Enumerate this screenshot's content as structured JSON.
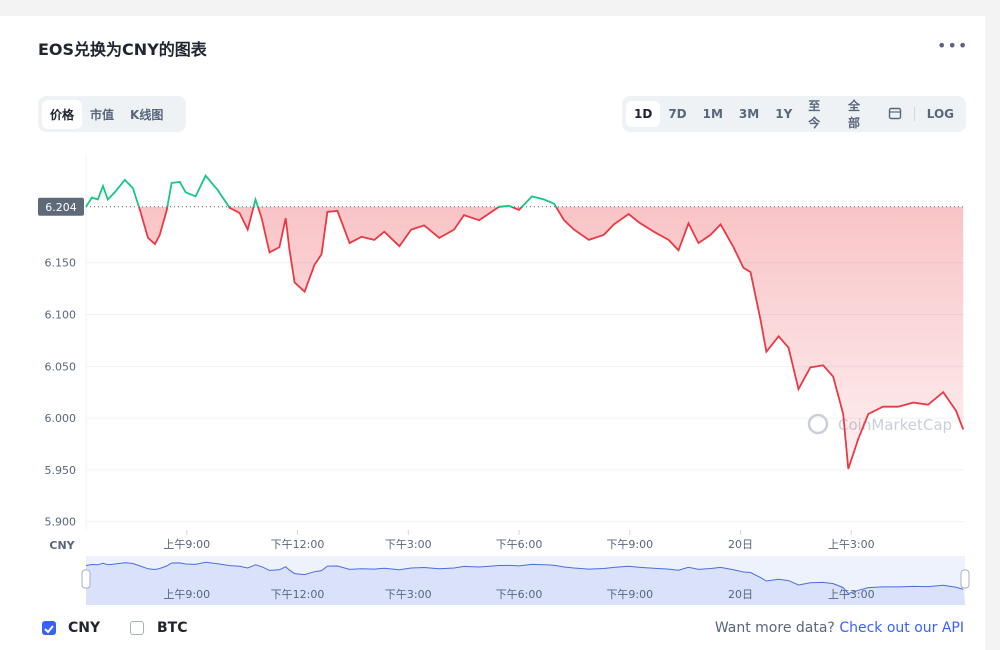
{
  "header": {
    "title": "EOS兑换为CNY的图表"
  },
  "tabs": [
    "价格",
    "市值",
    "K线图"
  ],
  "ranges": [
    "1D",
    "7D",
    "1M",
    "3M",
    "1Y",
    "至今",
    "全部",
    "LOG"
  ],
  "chart_data": {
    "type": "line",
    "ylabel": "CNY",
    "watermark": "CoinMarketCap",
    "reference": 6.204,
    "up_color": "#16c784",
    "down_color": "#ea3943",
    "navigator_color": "#4a6ee0",
    "x": [
      6.27,
      6.43,
      6.59,
      6.73,
      6.86,
      7.05,
      7.32,
      7.54,
      7.73,
      7.95,
      8.14,
      8.27,
      8.46,
      8.59,
      8.81,
      8.97,
      9.24,
      9.51,
      9.84,
      10.16,
      10.43,
      10.65,
      10.86,
      11.03,
      11.24,
      11.51,
      11.68,
      11.78,
      11.92,
      12.19,
      12.46,
      12.65,
      12.81,
      13.08,
      13.41,
      13.73,
      14.08,
      14.35,
      14.76,
      15.08,
      15.43,
      15.84,
      16.24,
      16.51,
      16.92,
      17.46,
      17.73,
      18.0,
      18.35,
      18.68,
      18.95,
      19.22,
      19.49,
      19.89,
      20.3,
      20.57,
      20.97,
      21.24,
      21.65,
      22.05,
      22.32,
      22.59,
      22.86,
      23.19,
      23.46,
      23.81,
      24.08,
      24.27,
      24.54,
      24.7,
      25.03,
      25.3,
      25.57,
      25.89,
      26.24,
      26.51,
      26.78,
      26.92,
      27.19,
      27.46,
      27.86,
      28.27,
      28.68,
      29.08,
      29.49,
      29.84,
      30.03
    ],
    "values": [
      6.204,
      6.213,
      6.211,
      6.224,
      6.211,
      6.218,
      6.23,
      6.222,
      6.201,
      6.174,
      6.168,
      6.177,
      6.201,
      6.227,
      6.228,
      6.218,
      6.214,
      6.234,
      6.22,
      6.203,
      6.198,
      6.182,
      6.211,
      6.193,
      6.16,
      6.165,
      6.193,
      6.163,
      6.131,
      6.122,
      6.148,
      6.158,
      6.199,
      6.2,
      6.169,
      6.175,
      6.172,
      6.18,
      6.166,
      6.182,
      6.186,
      6.174,
      6.182,
      6.196,
      6.191,
      6.204,
      6.205,
      6.201,
      6.214,
      6.211,
      6.207,
      6.191,
      6.182,
      6.172,
      6.177,
      6.187,
      6.197,
      6.189,
      6.18,
      6.172,
      6.162,
      6.188,
      6.169,
      6.177,
      6.187,
      6.165,
      6.145,
      6.141,
      6.095,
      6.064,
      6.079,
      6.068,
      6.028,
      6.049,
      6.051,
      6.04,
      6.004,
      5.951,
      5.98,
      6.004,
      6.011,
      6.011,
      6.015,
      6.013,
      6.025,
      6.007,
      5.989
    ],
    "xlim": [
      6.27,
      30.08
    ],
    "xticks": [
      {
        "value": 9,
        "label": "上午9:00"
      },
      {
        "value": 12,
        "label": "下午12:00"
      },
      {
        "value": 15,
        "label": "下午3:00"
      },
      {
        "value": 18,
        "label": "下午6:00"
      },
      {
        "value": 21,
        "label": "下午9:00"
      },
      {
        "value": 24,
        "label": "20日"
      },
      {
        "value": 27,
        "label": "上午3:00"
      }
    ],
    "ylim": [
      5.892,
      6.254
    ],
    "yticks": [
      {
        "value": 5.9,
        "label": "5.900"
      },
      {
        "value": 5.95,
        "label": "5.950"
      },
      {
        "value": 6.0,
        "label": "6.000"
      },
      {
        "value": 6.05,
        "label": "6.050"
      },
      {
        "value": 6.1,
        "label": "6.100"
      },
      {
        "value": 6.15,
        "label": "6.150"
      }
    ],
    "grid": true
  },
  "currency_options": [
    {
      "label": "CNY",
      "checked": true
    },
    {
      "label": "BTC",
      "checked": false
    }
  ],
  "footer": {
    "text": "Want more data?",
    "link": "Check out our API"
  }
}
